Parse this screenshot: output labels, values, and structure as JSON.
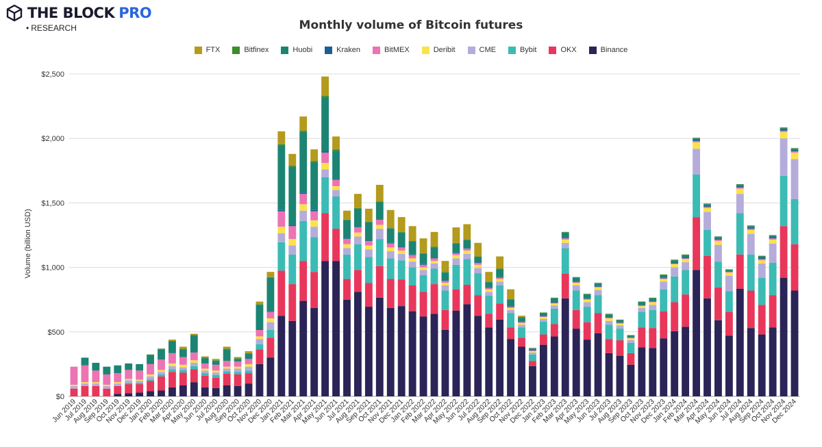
{
  "brand": {
    "name": "THE BLOCK",
    "pro": "PRO",
    "sub": "RESEARCH"
  },
  "chart_data": {
    "type": "bar",
    "stacked": true,
    "title": "Monthly volume of Bitcoin futures",
    "ylabel": "Volume (billion USD)",
    "xlabel": "",
    "ylim": [
      0,
      2500
    ],
    "yticks": [
      0,
      500,
      1000,
      1500,
      2000,
      2500
    ],
    "ytick_labels": [
      "$0",
      "$500",
      "$1,000",
      "$1,500",
      "$2,000",
      "$2,500"
    ],
    "grid": true,
    "legend_position": "top",
    "categories": [
      "Jun 2019",
      "Jul 2019",
      "Aug 2019",
      "Sep 2019",
      "Oct 2019",
      "Nov 2019",
      "Dec 2019",
      "Jan 2020",
      "Feb 2020",
      "Mar 2020",
      "Apr 2020",
      "May 2020",
      "Jun 2020",
      "Jul 2020",
      "Aug 2020",
      "Sep 2020",
      "Oct 2020",
      "Nov 2020",
      "Dec 2020",
      "Jan 2021",
      "Feb 2021",
      "Mar 2021",
      "Apr 2021",
      "May 2021",
      "Jun 2021",
      "Jul 2021",
      "Aug 2021",
      "Sep 2021",
      "Oct 2021",
      "Nov 2021",
      "Dec 2021",
      "Jan 2022",
      "Feb 2022",
      "Mar 2022",
      "Apr 2022",
      "May 2022",
      "Jun 2022",
      "Jul 2022",
      "Aug 2022",
      "Sep 2022",
      "Oct 2022",
      "Nov 2022",
      "Dec 2022",
      "Jan 2023",
      "Feb 2023",
      "Mar 2023",
      "Apr 2023",
      "May 2023",
      "Jun 2023",
      "Jul 2023",
      "Aug 2023",
      "Sep 2023",
      "Oct 2023",
      "Nov 2023",
      "Dec 2023",
      "Jan 2024",
      "Feb 2024",
      "Mar 2024",
      "Apr 2024",
      "May 2024",
      "Jun 2024",
      "Jul 2024",
      "Aug 2024",
      "Sep 2024",
      "Oct 2024",
      "Nov 2024",
      "Dec 2024"
    ],
    "series": [
      {
        "name": "Binance",
        "color": "#2a2457",
        "values": [
          0,
          0,
          0,
          0,
          20,
          25,
          30,
          40,
          45,
          70,
          85,
          110,
          70,
          65,
          85,
          80,
          100,
          250,
          300,
          625,
          585,
          740,
          685,
          1050,
          1050,
          750,
          810,
          695,
          765,
          685,
          700,
          660,
          620,
          640,
          515,
          665,
          715,
          625,
          535,
          595,
          445,
          385,
          235,
          400,
          465,
          760,
          525,
          440,
          490,
          335,
          315,
          245,
          380,
          375,
          450,
          505,
          540,
          980,
          760,
          590,
          470,
          835,
          530,
          480,
          535,
          920,
          820
        ]
      },
      {
        "name": "OKX",
        "color": "#e8375a",
        "values": [
          60,
          80,
          80,
          60,
          60,
          70,
          65,
          80,
          110,
          120,
          100,
          100,
          90,
          80,
          90,
          90,
          80,
          115,
          155,
          350,
          285,
          310,
          280,
          370,
          250,
          160,
          170,
          185,
          245,
          225,
          205,
          200,
          190,
          230,
          155,
          165,
          150,
          160,
          105,
          125,
          90,
          70,
          40,
          80,
          95,
          190,
          145,
          135,
          155,
          110,
          120,
          90,
          155,
          155,
          210,
          225,
          250,
          410,
          330,
          255,
          185,
          265,
          290,
          230,
          250,
          400,
          360
        ]
      },
      {
        "name": "Bybit",
        "color": "#3bbbb4",
        "values": [
          0,
          0,
          0,
          0,
          0,
          10,
          10,
          10,
          15,
          20,
          20,
          25,
          20,
          20,
          20,
          20,
          20,
          40,
          60,
          220,
          230,
          310,
          270,
          280,
          250,
          190,
          200,
          200,
          210,
          160,
          150,
          140,
          130,
          120,
          150,
          190,
          200,
          170,
          140,
          140,
          110,
          80,
          50,
          100,
          120,
          200,
          150,
          120,
          140,
          110,
          90,
          80,
          120,
          140,
          170,
          200,
          190,
          330,
          200,
          200,
          160,
          320,
          280,
          210,
          250,
          390,
          350
        ]
      },
      {
        "name": "CME",
        "color": "#b5acdb",
        "values": [
          20,
          20,
          20,
          20,
          20,
          20,
          15,
          25,
          20,
          25,
          20,
          25,
          20,
          20,
          20,
          25,
          30,
          40,
          60,
          70,
          70,
          80,
          80,
          60,
          50,
          50,
          60,
          60,
          80,
          55,
          50,
          45,
          40,
          40,
          40,
          50,
          40,
          40,
          30,
          30,
          25,
          20,
          15,
          20,
          25,
          40,
          40,
          35,
          40,
          30,
          25,
          20,
          30,
          40,
          60,
          70,
          60,
          200,
          140,
          130,
          120,
          150,
          160,
          110,
          150,
          290,
          310
        ]
      },
      {
        "name": "Deribit",
        "color": "#fbe24a",
        "values": [
          10,
          10,
          10,
          10,
          10,
          10,
          10,
          15,
          15,
          20,
          20,
          20,
          15,
          15,
          15,
          15,
          20,
          20,
          30,
          50,
          50,
          50,
          50,
          50,
          30,
          30,
          30,
          30,
          30,
          30,
          25,
          25,
          20,
          20,
          20,
          25,
          25,
          25,
          20,
          20,
          15,
          15,
          10,
          15,
          15,
          25,
          20,
          20,
          20,
          20,
          15,
          15,
          15,
          20,
          20,
          25,
          25,
          50,
          30,
          30,
          25,
          40,
          30,
          25,
          30,
          50,
          50
        ]
      },
      {
        "name": "BitMEX",
        "color": "#ec73b4",
        "values": [
          140,
          130,
          90,
          80,
          70,
          70,
          70,
          80,
          80,
          80,
          60,
          60,
          40,
          45,
          45,
          40,
          40,
          50,
          50,
          120,
          100,
          80,
          70,
          80,
          50,
          40,
          40,
          35,
          40,
          30,
          25,
          25,
          20,
          20,
          15,
          15,
          15,
          15,
          10,
          10,
          10,
          5,
          5,
          5,
          5,
          10,
          5,
          5,
          5,
          5,
          5,
          5,
          5,
          5,
          5,
          5,
          5,
          10,
          10,
          10,
          5,
          10,
          10,
          10,
          10,
          10,
          10
        ]
      },
      {
        "name": "Kraken",
        "color": "#1c5f92",
        "values": [
          0,
          0,
          0,
          0,
          0,
          0,
          0,
          0,
          0,
          0,
          0,
          0,
          0,
          0,
          0,
          0,
          0,
          5,
          5,
          10,
          10,
          10,
          10,
          10,
          5,
          5,
          5,
          5,
          5,
          5,
          5,
          5,
          5,
          5,
          5,
          5,
          5,
          5,
          5,
          5,
          5,
          5,
          5,
          5,
          5,
          5,
          5,
          5,
          5,
          5,
          5,
          5,
          5,
          5,
          5,
          5,
          5,
          10,
          10,
          10,
          5,
          10,
          10,
          10,
          10,
          10,
          10
        ]
      },
      {
        "name": "Huobi",
        "color": "#1c8473",
        "values": [
          0,
          60,
          60,
          60,
          60,
          50,
          50,
          70,
          80,
          90,
          60,
          130,
          40,
          30,
          90,
          20,
          40,
          190,
          260,
          500,
          450,
          470,
          370,
          420,
          220,
          140,
          140,
          140,
          130,
          110,
          110,
          100,
          80,
          80,
          60,
          70,
          60,
          40,
          40,
          60,
          50,
          30,
          10,
          20,
          30,
          40,
          30,
          30,
          20,
          20,
          15,
          10,
          20,
          20,
          20,
          20,
          20,
          10,
          10,
          10,
          10,
          10,
          10,
          10,
          10,
          10,
          10
        ]
      },
      {
        "name": "Bitfinex",
        "color": "#3d8c2e",
        "values": [
          0,
          0,
          0,
          0,
          0,
          0,
          0,
          5,
          5,
          5,
          5,
          5,
          5,
          5,
          5,
          5,
          5,
          5,
          5,
          10,
          10,
          10,
          10,
          10,
          10,
          5,
          5,
          5,
          5,
          5,
          5,
          5,
          5,
          5,
          5,
          5,
          5,
          5,
          5,
          5,
          5,
          5,
          5,
          5,
          5,
          5,
          5,
          5,
          5,
          5,
          5,
          5,
          5,
          5,
          5,
          5,
          5,
          5,
          5,
          5,
          5,
          5,
          5,
          5,
          5,
          5,
          5
        ]
      },
      {
        "name": "FTX",
        "color": "#b49a1d",
        "values": [
          0,
          0,
          0,
          0,
          0,
          0,
          0,
          0,
          0,
          10,
          15,
          10,
          10,
          10,
          15,
          10,
          15,
          20,
          40,
          100,
          90,
          110,
          90,
          150,
          100,
          70,
          110,
          100,
          130,
          140,
          115,
          115,
          115,
          115,
          85,
          120,
          120,
          105,
          75,
          95,
          75,
          10,
          0,
          0,
          0,
          0,
          0,
          0,
          0,
          0,
          0,
          0,
          0,
          0,
          0,
          0,
          0,
          0,
          0,
          0,
          0,
          0,
          0,
          0,
          0,
          0,
          0
        ]
      }
    ]
  }
}
